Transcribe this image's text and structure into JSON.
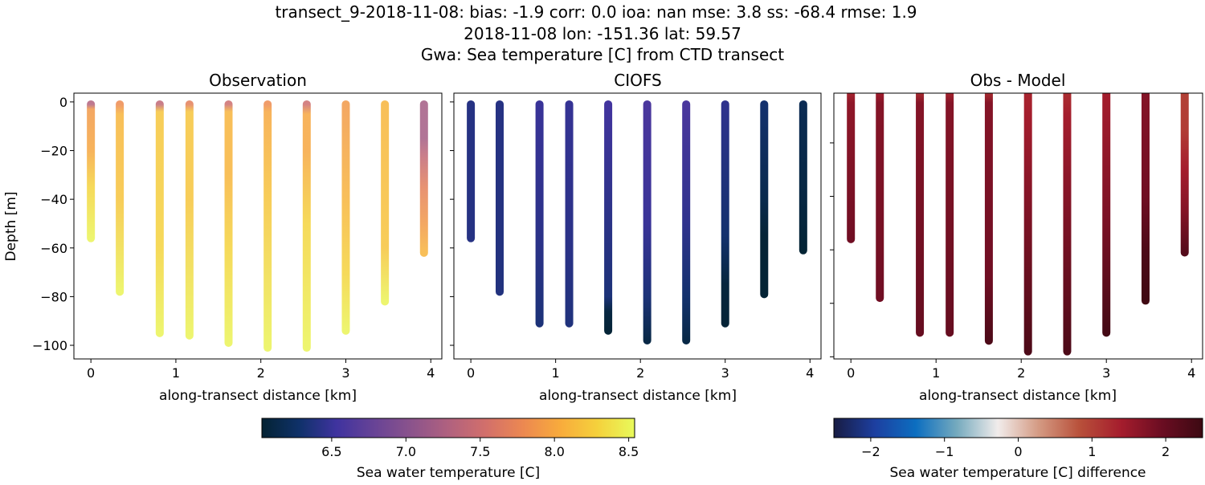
{
  "title": {
    "line1": "transect_9-2018-11-08: bias: -1.9  corr: 0.0  ioa: nan  mse: 3.8  ss: -68.4  rmse: 1.9",
    "line2": "2018-11-08 lon: -151.36 lat: 59.57",
    "line3": "Gwa: Sea temperature [C] from CTD transect"
  },
  "colorbars": [
    {
      "label": "Sea water temperature [C]",
      "colormap": "thermal",
      "range": [
        6.03,
        8.54
      ],
      "ticks": [
        6.5,
        7.0,
        7.5,
        8.0,
        8.5
      ],
      "tick_labels": [
        "6.5",
        "7.0",
        "7.5",
        "8.0",
        "8.5"
      ],
      "colors": [
        "#042333",
        "#0f3169",
        "#3f339f",
        "#674396",
        "#8b538c",
        "#b0617f",
        "#d26f6b",
        "#ec8851",
        "#f8ab3c",
        "#f5d13c",
        "#e8fa5b"
      ]
    },
    {
      "label": "Sea water temperature [C] difference",
      "colormap": "balance",
      "range": [
        -2.5,
        2.5
      ],
      "ticks": [
        -2,
        -1,
        0,
        1,
        2
      ],
      "tick_labels": [
        "−2",
        "−1",
        "0",
        "1",
        "2"
      ],
      "colors": [
        "#181c43",
        "#1d3fa0",
        "#0c6ec0",
        "#75aabe",
        "#f1eceb",
        "#d49a83",
        "#b8503a",
        "#a51d2d",
        "#6b0d22",
        "#3c0912"
      ]
    }
  ],
  "chart_data": [
    {
      "type": "scatter",
      "title": "Observation",
      "xlabel": "along-transect distance [km]",
      "ylabel": "Depth [m]",
      "xlim": [
        -0.2,
        4.13
      ],
      "ylim": [
        -105.6,
        3.6
      ],
      "xticks": [
        0,
        1,
        2,
        3,
        4
      ],
      "yticks": [
        0,
        -20,
        -40,
        -60,
        -80,
        -100
      ],
      "ytick_labels": [
        "0",
        "−20",
        "−40",
        "−60",
        "−80",
        "−100"
      ],
      "colorbar": 0,
      "stations": [
        {
          "x": 0.0,
          "depth": -56,
          "profile": [
            [
              -1,
              7.3
            ],
            [
              -3,
              7.9
            ],
            [
              -20,
              8.0
            ],
            [
              -35,
              8.3
            ],
            [
              -56,
              8.5
            ]
          ]
        },
        {
          "x": 0.34,
          "depth": -78,
          "profile": [
            [
              -1,
              7.8
            ],
            [
              -5,
              8.1
            ],
            [
              -40,
              8.2
            ],
            [
              -78,
              8.5
            ]
          ]
        },
        {
          "x": 0.81,
          "depth": -95,
          "profile": [
            [
              -1,
              7.4
            ],
            [
              -4,
              8.2
            ],
            [
              -60,
              8.3
            ],
            [
              -95,
              8.5
            ]
          ]
        },
        {
          "x": 1.16,
          "depth": -96,
          "profile": [
            [
              -1,
              7.7
            ],
            [
              -4,
              8.2
            ],
            [
              -40,
              8.2
            ],
            [
              -96,
              8.5
            ]
          ]
        },
        {
          "x": 1.62,
          "depth": -99,
          "profile": [
            [
              -1,
              7.5
            ],
            [
              -4,
              8.1
            ],
            [
              -30,
              8.1
            ],
            [
              -60,
              8.3
            ],
            [
              -99,
              8.5
            ]
          ]
        },
        {
          "x": 2.08,
          "depth": -101,
          "profile": [
            [
              -1,
              7.8
            ],
            [
              -4,
              8.0
            ],
            [
              -40,
              8.2
            ],
            [
              -101,
              8.5
            ]
          ]
        },
        {
          "x": 2.54,
          "depth": -101,
          "profile": [
            [
              -1,
              7.5
            ],
            [
              -5,
              8.0
            ],
            [
              -20,
              8.0
            ],
            [
              -50,
              8.3
            ],
            [
              -101,
              8.5
            ]
          ]
        },
        {
          "x": 3.0,
          "depth": -94,
          "profile": [
            [
              -1,
              7.9
            ],
            [
              -40,
              8.1
            ],
            [
              -70,
              8.3
            ],
            [
              -94,
              8.5
            ]
          ]
        },
        {
          "x": 3.46,
          "depth": -82,
          "profile": [
            [
              -1,
              8.1
            ],
            [
              -60,
              8.2
            ],
            [
              -82,
              8.5
            ]
          ]
        },
        {
          "x": 3.92,
          "depth": -62,
          "profile": [
            [
              -1,
              7.2
            ],
            [
              -15,
              7.2
            ],
            [
              -22,
              7.4
            ],
            [
              -35,
              7.7
            ],
            [
              -50,
              7.9
            ],
            [
              -62,
              8.1
            ]
          ]
        }
      ]
    },
    {
      "type": "scatter",
      "title": "CIOFS",
      "xlabel": "along-transect distance [km]",
      "xlim": [
        -0.2,
        4.13
      ],
      "ylim": [
        -105.6,
        3.6
      ],
      "xticks": [
        0,
        1,
        2,
        3,
        4
      ],
      "yticks": [
        0,
        -20,
        -40,
        -60,
        -80,
        -100
      ],
      "colorbar": 0,
      "stations": [
        {
          "x": 0.0,
          "depth": -56,
          "profile": [
            [
              -1,
              6.4
            ],
            [
              -56,
              6.4
            ]
          ]
        },
        {
          "x": 0.34,
          "depth": -78,
          "profile": [
            [
              -1,
              6.4
            ],
            [
              -78,
              6.38
            ]
          ]
        },
        {
          "x": 0.81,
          "depth": -91,
          "profile": [
            [
              -1,
              6.5
            ],
            [
              -60,
              6.42
            ],
            [
              -91,
              6.35
            ]
          ]
        },
        {
          "x": 1.16,
          "depth": -91,
          "profile": [
            [
              -1,
              6.48
            ],
            [
              -60,
              6.42
            ],
            [
              -91,
              6.37
            ]
          ]
        },
        {
          "x": 1.62,
          "depth": -94,
          "profile": [
            [
              -1,
              6.55
            ],
            [
              -80,
              6.35
            ],
            [
              -86,
              6.1
            ],
            [
              -94,
              6.05
            ]
          ]
        },
        {
          "x": 2.08,
          "depth": -98,
          "profile": [
            [
              -1,
              6.6
            ],
            [
              -50,
              6.5
            ],
            [
              -80,
              6.35
            ],
            [
              -98,
              6.12
            ]
          ]
        },
        {
          "x": 2.54,
          "depth": -98,
          "profile": [
            [
              -1,
              6.6
            ],
            [
              -50,
              6.45
            ],
            [
              -80,
              6.3
            ],
            [
              -98,
              6.12
            ]
          ]
        },
        {
          "x": 3.0,
          "depth": -91,
          "profile": [
            [
              -1,
              6.45
            ],
            [
              -55,
              6.3
            ],
            [
              -75,
              6.08
            ],
            [
              -91,
              6.05
            ]
          ]
        },
        {
          "x": 3.46,
          "depth": -79,
          "profile": [
            [
              -1,
              6.3
            ],
            [
              -40,
              6.15
            ],
            [
              -55,
              6.05
            ],
            [
              -79,
              6.04
            ]
          ]
        },
        {
          "x": 3.92,
          "depth": -61,
          "profile": [
            [
              -1,
              6.18
            ],
            [
              -40,
              6.1
            ],
            [
              -61,
              6.04
            ]
          ]
        }
      ]
    },
    {
      "type": "scatter",
      "title": "Obs - Model",
      "xlabel": "along-transect distance [km]",
      "xlim": [
        -0.2,
        4.13
      ],
      "ylim": [
        -100.8,
        -1.4
      ],
      "xticks": [
        0,
        1,
        2,
        3,
        4
      ],
      "yticks": [
        -20,
        -40,
        -60,
        -80,
        -100
      ],
      "colorbar": 1,
      "stations": [
        {
          "x": 0.0,
          "depth": -56,
          "profile": [
            [
              -1,
              1.3
            ],
            [
              -5,
              1.6
            ],
            [
              -56,
              1.9
            ]
          ]
        },
        {
          "x": 0.34,
          "depth": -78,
          "profile": [
            [
              -1,
              1.4
            ],
            [
              -5,
              1.7
            ],
            [
              -78,
              1.9
            ]
          ]
        },
        {
          "x": 0.81,
          "depth": -91,
          "profile": [
            [
              -1,
              1.2
            ],
            [
              -5,
              1.7
            ],
            [
              -91,
              2.0
            ]
          ]
        },
        {
          "x": 1.16,
          "depth": -91,
          "profile": [
            [
              -1,
              1.3
            ],
            [
              -5,
              1.7
            ],
            [
              -91,
              2.0
            ]
          ]
        },
        {
          "x": 1.62,
          "depth": -94,
          "profile": [
            [
              -1,
              1.2
            ],
            [
              -5,
              1.7
            ],
            [
              -70,
              1.9
            ],
            [
              -94,
              2.3
            ]
          ]
        },
        {
          "x": 2.08,
          "depth": -98,
          "profile": [
            [
              -1,
              1.3
            ],
            [
              -10,
              1.4
            ],
            [
              -40,
              1.7
            ],
            [
              -98,
              2.3
            ]
          ]
        },
        {
          "x": 2.54,
          "depth": -98,
          "profile": [
            [
              -1,
              1.2
            ],
            [
              -10,
              1.4
            ],
            [
              -40,
              1.7
            ],
            [
              -98,
              2.3
            ]
          ]
        },
        {
          "x": 3.0,
          "depth": -91,
          "profile": [
            [
              -1,
              1.4
            ],
            [
              -15,
              1.5
            ],
            [
              -50,
              1.8
            ],
            [
              -91,
              2.4
            ]
          ]
        },
        {
          "x": 3.46,
          "depth": -79,
          "profile": [
            [
              -1,
              1.7
            ],
            [
              -40,
              1.9
            ],
            [
              -60,
              2.3
            ],
            [
              -79,
              2.45
            ]
          ]
        },
        {
          "x": 3.92,
          "depth": -61,
          "profile": [
            [
              -1,
              1.0
            ],
            [
              -15,
              1.05
            ],
            [
              -30,
              1.4
            ],
            [
              -45,
              1.7
            ],
            [
              -61,
              2.2
            ]
          ]
        }
      ]
    }
  ]
}
